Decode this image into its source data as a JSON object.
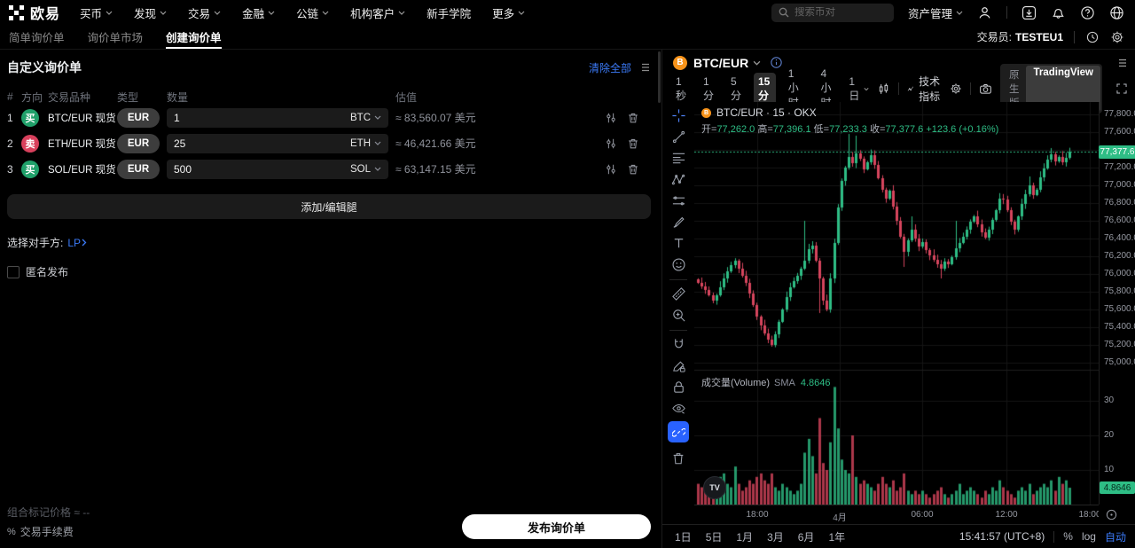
{
  "topnav": {
    "brand": "欧易",
    "items": [
      {
        "label": "买币"
      },
      {
        "label": "发现"
      },
      {
        "label": "交易"
      },
      {
        "label": "金融"
      },
      {
        "label": "公链"
      },
      {
        "label": "机构客户"
      },
      {
        "label": "新手学院"
      },
      {
        "label": "更多"
      }
    ],
    "search_placeholder": "搜索币对",
    "assets_label": "资产管理"
  },
  "subnav": {
    "tabs": [
      {
        "label": "简单询价单"
      },
      {
        "label": "询价单市场"
      },
      {
        "label": "创建询价单"
      }
    ],
    "trader_label": "交易员:",
    "trader_value": "TESTEU1"
  },
  "rfq": {
    "title": "自定义询价单",
    "clear_all": "清除全部",
    "columns": {
      "index": "#",
      "direction": "方向",
      "pair": "交易品种",
      "type": "类型",
      "amount": "数量",
      "value": "估值"
    },
    "legs": [
      {
        "index": "1",
        "direction": "买",
        "side": "buy",
        "pair": "BTC/EUR 现货",
        "type": "EUR",
        "amount": "1",
        "unit": "BTC",
        "value": "≈ 83,560.07 美元"
      },
      {
        "index": "2",
        "direction": "卖",
        "side": "sell",
        "pair": "ETH/EUR 现货",
        "type": "EUR",
        "amount": "25",
        "unit": "ETH",
        "value": "≈ 46,421.66 美元"
      },
      {
        "index": "3",
        "direction": "买",
        "side": "buy",
        "pair": "SOL/EUR 现货",
        "type": "EUR",
        "amount": "500",
        "unit": "SOL",
        "value": "≈ 63,147.15 美元"
      }
    ],
    "add_edit_button": "添加/编辑腿",
    "counterparty_label": "选择对手方:",
    "counterparty_value": "LP",
    "anonymous_label": "匿名发布",
    "mark_price_label": "组合标记价格",
    "mark_price_value": "≈ --",
    "fee_icon": "%",
    "fee_label": "交易手续费",
    "submit_button": "发布询价单"
  },
  "chart": {
    "symbol": "BTC/EUR",
    "coin_letter": "B",
    "timeframes": [
      {
        "label": "1秒"
      },
      {
        "label": "1分"
      },
      {
        "label": "5分"
      },
      {
        "label": "15分"
      },
      {
        "label": "1小时"
      },
      {
        "label": "4小时"
      },
      {
        "label": "1日"
      }
    ],
    "active_timeframe": "15分",
    "indicators_label": "技术指标",
    "native_label": "原生版",
    "tv_label": "TradingView",
    "legend": {
      "title": "BTC/EUR · 15 · OKX",
      "open_label": "开=",
      "open": "77,262.0",
      "high_label": "高=",
      "high": "77,396.1",
      "low_label": "低=",
      "low": "77,233.3",
      "close_label": "收=",
      "close": "77,377.6",
      "change": "+123.6 (+0.16%)"
    },
    "last_price": "77,377.6",
    "volume_legend": {
      "label": "成交量(Volume)",
      "sma": "SMA",
      "value": "4.8646"
    },
    "volume_current": "4.8646",
    "ranges": [
      {
        "label": "1日"
      },
      {
        "label": "5日"
      },
      {
        "label": "1月"
      },
      {
        "label": "3月"
      },
      {
        "label": "6月"
      },
      {
        "label": "1年"
      }
    ],
    "clock": "15:41:57 (UTC+8)",
    "scale_percent": "%",
    "scale_log": "log",
    "scale_auto": "自动",
    "colors": {
      "up": "#2ebd85",
      "down": "#d6455d",
      "accent": "#3b7af7",
      "tv_blue": "#2962ff",
      "grid": "#151515"
    },
    "chart_data": {
      "type": "candlestick",
      "interval": "15m",
      "ylim": [
        74920,
        77940
      ],
      "last": 77377.6,
      "price_ticks": [
        77800,
        77600,
        77400,
        77200,
        77000,
        76800,
        76600,
        76400,
        76200,
        76000,
        75800,
        75600,
        75400,
        75200,
        75000
      ],
      "volume_ticks": [
        30,
        20,
        10
      ],
      "time_labels": [
        {
          "label": "18:00",
          "x": 71
        },
        {
          "label": "4月",
          "x": 164
        },
        {
          "label": "06:00",
          "x": 257
        },
        {
          "label": "12:00",
          "x": 352
        },
        {
          "label": "18:00",
          "x": 446
        }
      ],
      "open_first": 75940,
      "closes": [
        75900,
        75860,
        75820,
        75760,
        75700,
        75760,
        75850,
        75950,
        76030,
        76100,
        76150,
        76060,
        75980,
        75900,
        75780,
        75650,
        75520,
        75420,
        75330,
        75260,
        75200,
        75320,
        75460,
        75600,
        75740,
        75850,
        75920,
        75980,
        76060,
        76150,
        76280,
        76320,
        76150,
        75950,
        75700,
        75600,
        75950,
        76350,
        76750,
        77050,
        77200,
        77320,
        77250,
        77360,
        77300,
        77180,
        77260,
        77340,
        77230,
        77080,
        76950,
        76850,
        76940,
        76760,
        76600,
        76420,
        76250,
        76380,
        76500,
        76400,
        76310,
        76360,
        76270,
        76210,
        76160,
        76110,
        76060,
        76140,
        76110,
        76190,
        76290,
        76350,
        76420,
        76500,
        76590,
        76650,
        76560,
        76470,
        76410,
        76500,
        76610,
        76720,
        76850,
        76840,
        76720,
        76590,
        76500,
        76650,
        76790,
        76900,
        77000,
        76890,
        76950,
        77090,
        77190,
        77290,
        77350,
        77270,
        77320,
        77260,
        77310,
        77377.6
      ],
      "volumes": [
        6,
        5,
        4,
        7,
        5,
        4,
        8,
        9,
        6,
        5,
        11,
        6,
        4,
        5,
        7,
        6,
        8,
        9,
        7,
        6,
        9,
        5,
        4,
        6,
        5,
        4,
        3,
        4,
        6,
        15,
        19,
        14,
        9,
        25,
        12,
        10,
        18,
        34,
        22,
        13,
        10,
        9,
        20,
        8,
        6,
        7,
        6,
        5,
        4,
        6,
        8,
        6,
        5,
        7,
        4,
        5,
        9,
        4,
        3,
        4,
        3,
        4,
        3,
        2,
        3,
        4,
        5,
        3,
        2,
        3,
        4,
        6,
        3,
        4,
        5,
        4,
        3,
        2,
        4,
        3,
        5,
        4,
        7,
        5,
        4,
        3,
        2,
        4,
        5,
        4,
        6,
        3,
        4,
        5,
        6,
        5,
        7,
        4,
        8,
        6,
        7,
        4.8646
      ],
      "wick_overrides": {
        "20": {
          "low": 75180
        },
        "29": {
          "high": 76600
        },
        "33": {
          "low": 75560
        },
        "41": {
          "high": 77580
        },
        "43": {
          "high": 77560
        },
        "56": {
          "low": 76080
        },
        "58": {
          "high": 76650
        },
        "66": {
          "low": 75950
        },
        "70": {
          "high": 76600
        },
        "90": {
          "high": 77100
        },
        "96": {
          "high": 77420
        }
      }
    }
  }
}
